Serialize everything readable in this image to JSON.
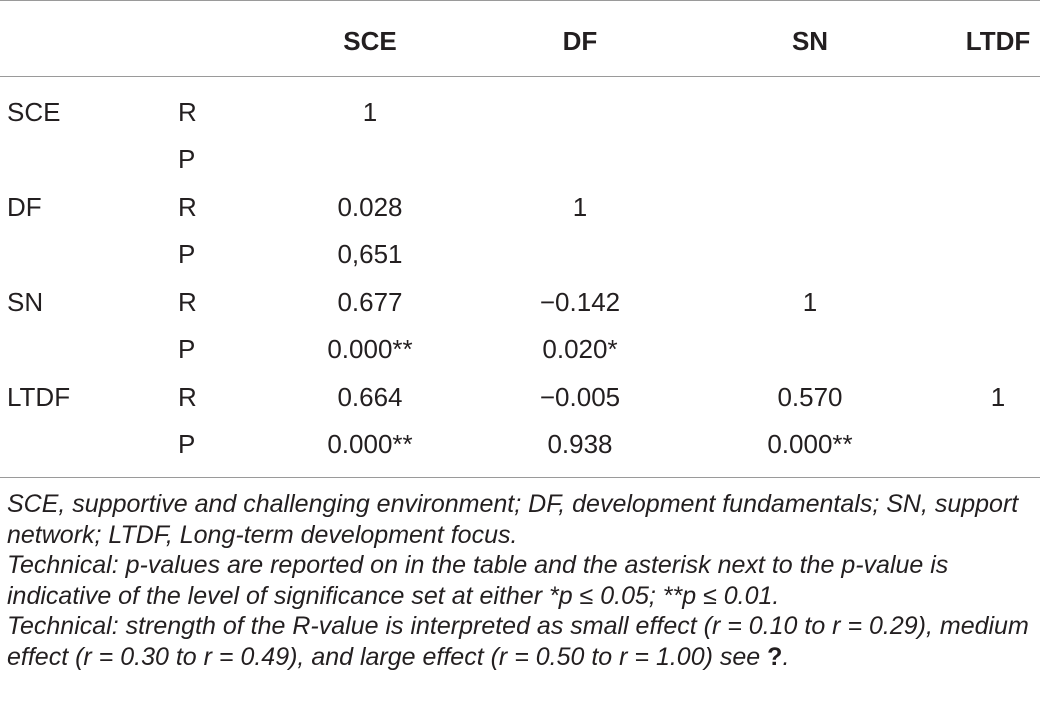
{
  "table": {
    "headers": [
      "SCE",
      "DF",
      "SN",
      "LTDF"
    ],
    "rows": [
      {
        "variable": "SCE",
        "stat": "R",
        "values": [
          "1",
          "",
          "",
          ""
        ]
      },
      {
        "variable": "",
        "stat": "P",
        "values": [
          "",
          "",
          "",
          ""
        ]
      },
      {
        "variable": "DF",
        "stat": "R",
        "values": [
          "0.028",
          "1",
          "",
          ""
        ]
      },
      {
        "variable": "",
        "stat": "P",
        "values": [
          "0,651",
          "",
          "",
          ""
        ]
      },
      {
        "variable": "SN",
        "stat": "R",
        "values": [
          "0.677",
          "−0.142",
          "1",
          ""
        ]
      },
      {
        "variable": "",
        "stat": "P",
        "values": [
          "0.000**",
          "0.020*",
          "",
          ""
        ]
      },
      {
        "variable": "LTDF",
        "stat": "R",
        "values": [
          "0.664",
          "−0.005",
          "0.570",
          "1"
        ]
      },
      {
        "variable": "",
        "stat": "P",
        "values": [
          "0.000**",
          "0.938",
          "0.000**",
          ""
        ]
      }
    ]
  },
  "footnotes": {
    "abbreviations": "SCE, supportive and challenging environment; DF, development fundamentals; SN, support network; LTDF, Long-term development focus.",
    "technical_p": "Technical: p-values are reported on in the table and the asterisk next to the p-value is indicative of the level of significance set at either *p ≤ 0.05; **p ≤ 0.01.",
    "technical_r": "Technical: strength of the R-value is interpreted as small effect (r = 0.10 to r = 0.29), medium effect (r = 0.30 to r = 0.49), and large effect (r = 0.50 to r = 1.00) see ",
    "ref_marker": "?",
    "end_period": "."
  }
}
